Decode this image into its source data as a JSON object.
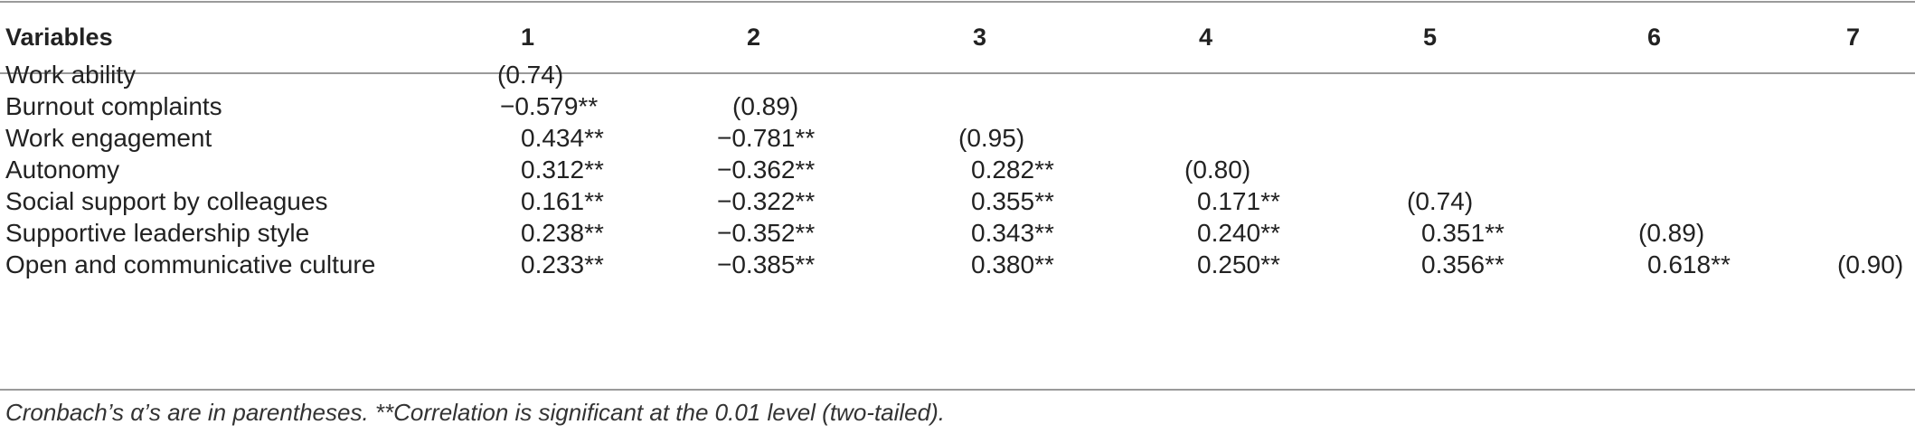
{
  "table": {
    "headers": [
      "Variables",
      "1",
      "2",
      "3",
      "4",
      "5",
      "6",
      "7"
    ],
    "rows": [
      {
        "label": "Work ability",
        "values": [
          "(0.74)",
          "",
          "",
          "",
          "",
          "",
          ""
        ]
      },
      {
        "label": "Burnout complaints",
        "values": [
          "−0.579**",
          "(0.89)",
          "",
          "",
          "",
          "",
          ""
        ]
      },
      {
        "label": "Work engagement",
        "values": [
          "0.434**",
          "−0.781**",
          "(0.95)",
          "",
          "",
          "",
          ""
        ]
      },
      {
        "label": "Autonomy",
        "values": [
          "0.312**",
          "−0.362**",
          "0.282**",
          "(0.80)",
          "",
          "",
          ""
        ]
      },
      {
        "label": "Social support by colleagues",
        "values": [
          "0.161**",
          "−0.322**",
          "0.355**",
          "0.171**",
          "(0.74)",
          "",
          ""
        ]
      },
      {
        "label": "Supportive leadership style",
        "values": [
          "0.238**",
          "−0.352**",
          "0.343**",
          "0.240**",
          "0.351**",
          "(0.89)",
          ""
        ]
      },
      {
        "label": "Open and communicative culture",
        "values": [
          "0.233**",
          "−0.385**",
          "0.380**",
          "0.250**",
          "0.356**",
          "0.618**",
          "(0.90)"
        ]
      }
    ],
    "footnote": "Cronbach’s α’s are in parentheses. **Correlation is significant at the 0.01 level (two-tailed)."
  }
}
